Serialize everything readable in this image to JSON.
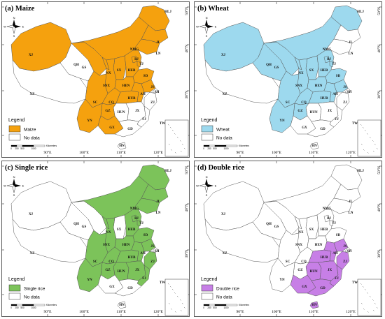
{
  "colors": {
    "maize": "#F5A10E",
    "wheat": "#9DD9EE",
    "single_rice": "#7CC35A",
    "double_rice": "#C77FE6",
    "no_data": "#FFFFFF",
    "border": "#555555"
  },
  "common": {
    "legend_title": "Legend",
    "no_data_label": "No data",
    "scale_labels": [
      "0",
      "250",
      "500",
      "1000"
    ],
    "scale_unit": "Kilometers",
    "compass": {
      "n": "N",
      "s": "S",
      "e": "E",
      "w": "W"
    },
    "lon_ticks": [
      "90°E",
      "100°E",
      "110°E",
      "120°E"
    ],
    "lat_ticks": [
      "50°N",
      "40°N",
      "30°N",
      "20°N"
    ],
    "inset_label": "TW"
  },
  "panels": [
    {
      "title": "(a) Maize",
      "legend_label": "Maize",
      "color_key": "maize",
      "covered": [
        "HLJ",
        "JL",
        "LN",
        "NMG",
        "XJ",
        "GS",
        "NX",
        "SX",
        "HEB",
        "BJ",
        "TJ",
        "SD",
        "SNX",
        "HEN",
        "SC",
        "CQ",
        "HUB",
        "AH",
        "JS",
        "YN",
        "GZ",
        "GX"
      ]
    },
    {
      "title": "(b) Wheat",
      "legend_label": "Wheat",
      "color_key": "wheat",
      "covered": [
        "HLJ",
        "NMG",
        "XJ",
        "GS",
        "QH",
        "NX",
        "SX",
        "HEB",
        "BJ",
        "TJ",
        "SD",
        "SNX",
        "HEN",
        "SC",
        "CQ",
        "HUB",
        "AH",
        "JS",
        "YN",
        "GZ"
      ]
    },
    {
      "title": "(c) Single rice",
      "legend_label": "Single rice",
      "color_key": "single_rice",
      "covered": [
        "HLJ",
        "JL",
        "LN",
        "NMG",
        "NX",
        "HEB",
        "BJ",
        "TJ",
        "SD",
        "SNX",
        "HEN",
        "SC",
        "CQ",
        "HUB",
        "AH",
        "JS",
        "YN",
        "GZ",
        "HUN",
        "JX",
        "ZJ",
        "FJ"
      ]
    },
    {
      "title": "(d) Double rice",
      "legend_label": "Double rice",
      "color_key": "double_rice",
      "covered": [
        "HUB",
        "AH",
        "JS",
        "HUN",
        "JX",
        "ZJ",
        "FJ",
        "GX",
        "GD",
        "HN"
      ]
    }
  ],
  "provinces": {
    "HLJ": "HLJ",
    "JL": "JL",
    "LN": "LN",
    "NMG": "NMG",
    "XJ": "XJ",
    "XZ": "XZ",
    "QH": "QH",
    "GS": "GS",
    "NX": "NX",
    "SX": "SX",
    "HEB": "HEB",
    "BJ": "BJ",
    "TJ": "TJ",
    "SD": "SD",
    "SNX": "SNX",
    "HEN": "HEN",
    "SC": "SC",
    "CQ": "CQ",
    "HUB": "HUB",
    "AH": "AH",
    "JS": "JS",
    "SH": "SH",
    "ZJ": "ZJ",
    "HUN": "HUN",
    "JX": "JX",
    "FJ": "FJ",
    "GZ": "GZ",
    "YN": "YN",
    "GX": "GX",
    "GD": "GD",
    "HN": "HN"
  }
}
